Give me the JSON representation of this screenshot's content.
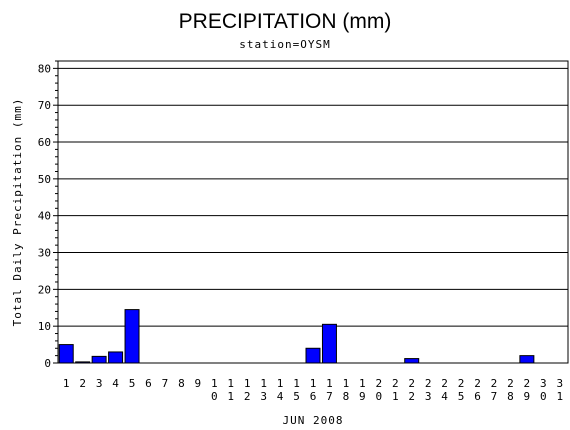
{
  "chart_data": {
    "type": "bar",
    "title": "PRECIPITATION (mm)",
    "subtitle": "station=OYSM",
    "xlabel": "JUN 2008",
    "ylabel": "Total Daily Precipitation (mm)",
    "ylim": [
      0,
      82
    ],
    "yticks": [
      0,
      10,
      20,
      30,
      40,
      50,
      60,
      70,
      80
    ],
    "grid": true,
    "bar_color": "#0000ff",
    "categories": [
      "1",
      "2",
      "3",
      "4",
      "5",
      "6",
      "7",
      "8",
      "9",
      "10",
      "11",
      "12",
      "13",
      "14",
      "15",
      "16",
      "17",
      "18",
      "19",
      "20",
      "21",
      "22",
      "23",
      "24",
      "25",
      "26",
      "27",
      "28",
      "29",
      "30",
      "31"
    ],
    "values": [
      5,
      0.3,
      1.8,
      3,
      14.5,
      0,
      0,
      0,
      0,
      0,
      0,
      0,
      0,
      0,
      0,
      4,
      10.5,
      0,
      0,
      0,
      0,
      1.2,
      0,
      0,
      0,
      0,
      0,
      0,
      2,
      0,
      0
    ]
  }
}
